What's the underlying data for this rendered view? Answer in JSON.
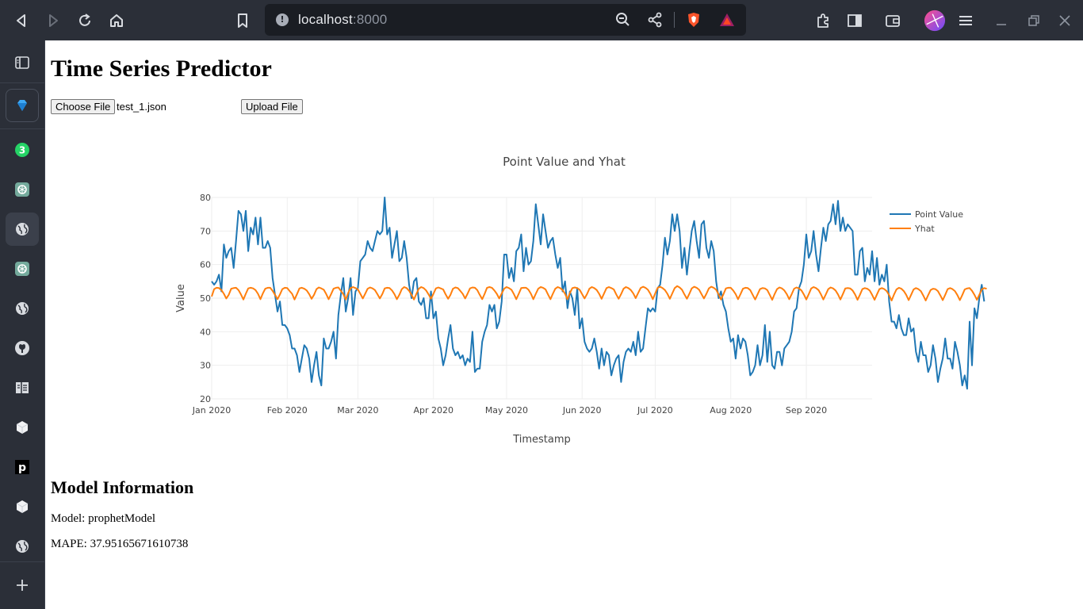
{
  "browser": {
    "url_host": "localhost",
    "url_port": ":8000"
  },
  "sidebar": {
    "badge_count": "3",
    "items": [
      "sidebar-toggle",
      "gem-app",
      "whatsapp",
      "chatgpt",
      "web",
      "chatgpt-2",
      "web-2",
      "github",
      "notes",
      "cube",
      "p-app",
      "cube-2",
      "web-3"
    ]
  },
  "page": {
    "title": "Time Series Predictor",
    "choose_file_label": "Choose File",
    "file_name": "test_1.json",
    "upload_label": "Upload File"
  },
  "colors": {
    "point_value": "#1f77b4",
    "yhat": "#ff7f0e"
  },
  "chart_data": {
    "type": "line",
    "title": "Point Value and Yhat",
    "xlabel": "Timestamp",
    "ylabel": "Value",
    "x_ticks": [
      "Jan 2020",
      "Feb 2020",
      "Mar 2020",
      "Apr 2020",
      "May 2020",
      "Jun 2020",
      "Jul 2020",
      "Aug 2020",
      "Sep 2020"
    ],
    "y_ticks": [
      20,
      30,
      40,
      50,
      60,
      70,
      80
    ],
    "ylim": [
      20,
      80
    ],
    "xlim": [
      "2020-01-01",
      "2020-09-28"
    ],
    "legend": "top-right",
    "grid": true,
    "series": [
      {
        "name": "Point Value",
        "x_start": "2020-01-01",
        "x_step_days": 1,
        "values": [
          55,
          54,
          55,
          57,
          52,
          66,
          62,
          64,
          65,
          59,
          67,
          76,
          75,
          70,
          76,
          64,
          71,
          69,
          74,
          66,
          74,
          65,
          65,
          67,
          65,
          56,
          51,
          46,
          49,
          42,
          42,
          41,
          39,
          35,
          35,
          33,
          28,
          32,
          36,
          35,
          32,
          25,
          30,
          34,
          27,
          24,
          38,
          35,
          35,
          37,
          40,
          32,
          45,
          51,
          56,
          46,
          50,
          56,
          45,
          52,
          53,
          61,
          62,
          63,
          67,
          65,
          64,
          67,
          70,
          69,
          70,
          80,
          69,
          71,
          62,
          66,
          70,
          61,
          62,
          67,
          62,
          54,
          50,
          55,
          56,
          49,
          48,
          50,
          44,
          44,
          52,
          44,
          46,
          38,
          35,
          30,
          33,
          38,
          42,
          35,
          33,
          34,
          32,
          33,
          30,
          32,
          31,
          40,
          28,
          29,
          29,
          37,
          40,
          42,
          48,
          46,
          48,
          41,
          43,
          49,
          63,
          63,
          56,
          59,
          55,
          64,
          65,
          69,
          58,
          65,
          60,
          61,
          67,
          78,
          72,
          66,
          75,
          70,
          65,
          67,
          68,
          63,
          59,
          62,
          52,
          55,
          47,
          52,
          50,
          45,
          53,
          41,
          44,
          37,
          35,
          34,
          35,
          38,
          34,
          29,
          35,
          30,
          34,
          33,
          27,
          30,
          32,
          33,
          25,
          31,
          34,
          35,
          34,
          37,
          33,
          40,
          34,
          35,
          41,
          47,
          46,
          47,
          46,
          53,
          54,
          60,
          68,
          63,
          67,
          75,
          70,
          75,
          70,
          59,
          65,
          57,
          64,
          70,
          73,
          67,
          62,
          72,
          73,
          65,
          62,
          67,
          64,
          55,
          50,
          52,
          48,
          46,
          41,
          37,
          38,
          32,
          39,
          35,
          38,
          37,
          33,
          27,
          28,
          30,
          36,
          30,
          33,
          42,
          31,
          40,
          30,
          29,
          34,
          34,
          30,
          35,
          36,
          37,
          40,
          46,
          47,
          53,
          55,
          60,
          69,
          62,
          64,
          70,
          63,
          58,
          65,
          71,
          67,
          72,
          73,
          78,
          72,
          79,
          70,
          74,
          70,
          72,
          71,
          70,
          57,
          57,
          64,
          65,
          55,
          59,
          57,
          64,
          55,
          62,
          54,
          57,
          55,
          60,
          49,
          43,
          43,
          41,
          45,
          41,
          39,
          39,
          44,
          40,
          41,
          34,
          31,
          37,
          33,
          33,
          28,
          30,
          36,
          32,
          25,
          29,
          32,
          38,
          32,
          32,
          29,
          37,
          34,
          30,
          24,
          27,
          23,
          43,
          30,
          47,
          44,
          50,
          54,
          49
        ]
      },
      {
        "name": "Yhat",
        "x_start": "2020-01-01",
        "x_step_days": 1,
        "values": [
          50.5,
          52.7,
          53.1,
          53.0,
          52.4,
          51.3,
          49.9,
          51.0,
          52.8,
          53.0,
          53.1,
          52.4,
          51.1,
          49.6,
          51.3,
          52.9,
          53.1,
          52.9,
          52.4,
          51.3,
          49.7,
          51.4,
          52.8,
          53.1,
          53.1,
          52.2,
          51.0,
          49.7,
          51.1,
          52.7,
          53.1,
          53.0,
          52.1,
          51.3,
          49.6,
          51.2,
          52.9,
          53.1,
          52.8,
          52.3,
          51.2,
          49.8,
          51.0,
          52.7,
          53.2,
          52.9,
          52.5,
          51.2,
          49.7,
          51.2,
          52.8,
          53.1,
          53.2,
          52.2,
          51.2,
          49.6,
          51.5,
          53.0,
          53.3,
          53.0,
          52.6,
          51.3,
          49.9,
          51.3,
          52.8,
          53.2,
          52.9,
          52.4,
          51.2,
          49.9,
          51.2,
          52.9,
          53.1,
          53.0,
          52.3,
          51.2,
          49.7,
          51.0,
          52.7,
          53.3,
          53.0,
          52.2,
          51.0,
          49.6,
          51.3,
          52.8,
          53.3,
          53.0,
          52.3,
          51.1,
          49.8,
          51.3,
          52.9,
          53.2,
          52.9,
          52.6,
          51.1,
          49.8,
          51.0,
          52.8,
          53.2,
          53.0,
          52.2,
          51.3,
          49.9,
          51.3,
          52.9,
          53.2,
          53.1,
          52.4,
          51.0,
          49.7,
          51.3,
          53.1,
          53.3,
          53.1,
          52.3,
          51.3,
          49.9,
          51.4,
          52.8,
          53.3,
          53.0,
          52.5,
          51.2,
          49.7,
          51.3,
          53.0,
          53.1,
          53.1,
          52.5,
          51.3,
          49.7,
          51.3,
          52.8,
          53.3,
          53.1,
          52.6,
          51.1,
          49.7,
          51.3,
          52.8,
          53.3,
          53.0,
          52.4,
          51.3,
          49.7,
          51.5,
          53.0,
          53.2,
          53.0,
          52.5,
          51.2,
          49.9,
          51.2,
          52.8,
          53.3,
          53.0,
          52.4,
          51.3,
          49.8,
          51.4,
          53.0,
          53.3,
          53.0,
          52.6,
          51.1,
          49.8,
          51.2,
          52.8,
          53.3,
          53.0,
          52.4,
          51.4,
          50.0,
          51.5,
          53.0,
          53.4,
          53.1,
          52.5,
          51.3,
          49.7,
          51.4,
          53.1,
          53.4,
          53.0,
          52.4,
          51.3,
          49.8,
          51.4,
          53.0,
          53.6,
          53.2,
          52.5,
          51.1,
          49.8,
          51.3,
          52.9,
          53.4,
          53.1,
          52.5,
          51.2,
          49.9,
          51.3,
          52.9,
          53.4,
          53.1,
          52.5,
          51.1,
          49.6,
          51.2,
          52.9,
          53.1,
          53.1,
          52.3,
          51.2,
          49.7,
          51.2,
          52.8,
          53.1,
          53.0,
          52.4,
          51.0,
          49.6,
          51.1,
          52.7,
          53.0,
          52.9,
          52.4,
          51.0,
          49.5,
          51.2,
          52.7,
          53.2,
          52.9,
          52.3,
          51.2,
          49.7,
          51.2,
          52.8,
          53.2,
          52.9,
          52.3,
          51.1,
          49.6,
          51.2,
          52.9,
          53.3,
          53.0,
          52.4,
          51.1,
          49.6,
          51.1,
          52.7,
          53.2,
          52.9,
          52.3,
          51.1,
          49.6,
          51.2,
          52.9,
          53.0,
          52.9,
          52.3,
          51.1,
          49.5,
          51.0,
          52.7,
          53.0,
          52.8,
          52.3,
          51.0,
          49.5,
          51.1,
          52.7,
          53.0,
          52.7,
          52.1,
          50.9,
          49.3,
          51.1,
          52.6,
          53.1,
          52.8,
          52.1,
          51.0,
          49.4,
          51.0,
          52.6,
          53.0,
          52.7,
          52.1,
          50.8,
          49.3,
          50.9,
          52.4,
          52.8,
          52.7,
          52.1,
          50.8,
          49.4,
          51.0,
          52.7,
          53.0,
          52.7,
          52.1,
          50.9,
          49.4,
          50.9,
          52.6,
          52.9,
          53.0,
          52.2,
          51.0,
          49.5,
          51.0,
          52.6,
          53.0,
          52.8
        ]
      }
    ]
  },
  "model_info": {
    "heading": "Model Information",
    "model_line": "Model: prophetModel",
    "mape_line": "MAPE: 37.95165671610738"
  }
}
